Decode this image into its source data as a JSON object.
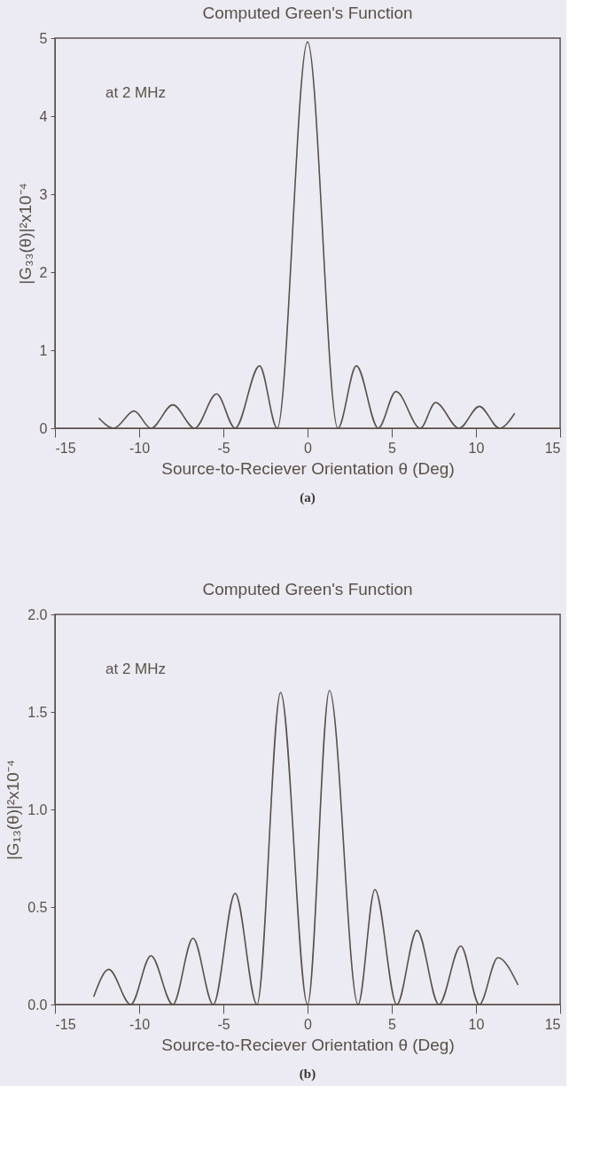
{
  "chart_data": [
    {
      "type": "line",
      "title": "Computed Green's Function",
      "xlabel": "Source-to-Reciever Orientation θ (Deg)",
      "ylabel": "|G₃₃(θ)|²x10⁻⁴",
      "x": [
        -12.4,
        -11.5,
        -10.3,
        -9.3,
        -8.0,
        -6.7,
        -5.4,
        -4.3,
        -2.85,
        -1.8,
        0,
        1.8,
        2.9,
        4.2,
        5.25,
        6.7,
        7.6,
        9.0,
        10.2,
        11.4,
        12.3
      ],
      "series": [
        {
          "color": "#5a5048",
          "values": [
            0.13,
            0,
            0.22,
            0,
            0.3,
            0,
            0.44,
            0,
            0.8,
            0,
            4.95,
            0,
            0.8,
            0,
            0.47,
            0,
            0.33,
            0,
            0.28,
            0,
            0.19
          ]
        }
      ],
      "xlim": [
        -15,
        15
      ],
      "xticks": [
        -15,
        -10,
        -5,
        0,
        5,
        10,
        15
      ],
      "ylim": [
        0,
        5
      ],
      "yticks": [
        0,
        1,
        2,
        3,
        4,
        5
      ],
      "grid": false,
      "marker": "none",
      "line_style": "solid",
      "annotations": [
        "at 2 MHz",
        "(a)"
      ]
    },
    {
      "type": "line",
      "title": "Computed Green's Function",
      "xlabel": "Source-to-Reciever Orientation θ (Deg)",
      "ylabel": "|G₁₃(θ)|²x10⁻⁴",
      "x": [
        -12.7,
        -11.8,
        -10.5,
        -9.3,
        -8.0,
        -6.8,
        -5.6,
        -4.3,
        -3.0,
        -1.6,
        0,
        1.3,
        3.0,
        4.0,
        5.3,
        6.5,
        7.8,
        9.1,
        10.2,
        11.3,
        12.5
      ],
      "series": [
        {
          "color": "#5a5048",
          "values": [
            0.04,
            0.18,
            0,
            0.25,
            0,
            0.34,
            0,
            0.57,
            0,
            1.6,
            0,
            1.61,
            0,
            0.59,
            0,
            0.38,
            0,
            0.3,
            0,
            0.24,
            0.1
          ]
        }
      ],
      "xlim": [
        -15,
        15
      ],
      "xticks": [
        -15,
        -10,
        -5,
        0,
        5,
        10,
        15
      ],
      "ylim": [
        0,
        2
      ],
      "yticks": [
        {
          "value": 0,
          "label": "0.0"
        },
        {
          "value": 0.5,
          "label": "0.5"
        },
        {
          "value": 1,
          "label": "1.0"
        },
        {
          "value": 1.5,
          "label": "1.5"
        },
        {
          "value": 2,
          "label": "2.0"
        }
      ],
      "grid": false,
      "marker": "none",
      "line_style": "solid",
      "annotations": [
        "at 2 MHz",
        "(b)"
      ]
    }
  ]
}
